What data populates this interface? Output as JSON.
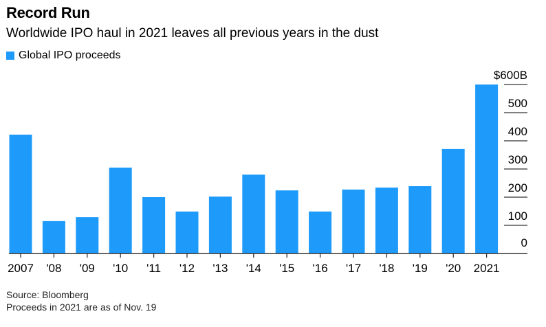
{
  "chart_data": {
    "type": "bar",
    "title": "Record Run",
    "subtitle": "Worldwide IPO haul in 2021 leaves all previous years in the dust",
    "legend": [
      {
        "name": "Global IPO proceeds",
        "color": "#1e9bfa"
      }
    ],
    "legend_placement": "top-left",
    "categories": [
      "2007",
      "'08",
      "'09",
      "'10",
      "'11",
      "'12",
      "'13",
      "'14",
      "'15",
      "'16",
      "'17",
      "'18",
      "'19",
      "'20",
      "2021"
    ],
    "series": [
      {
        "name": "Global IPO proceeds",
        "values": [
          422,
          115,
          129,
          305,
          200,
          149,
          202,
          280,
          224,
          149,
          227,
          234,
          239,
          371,
          600
        ]
      }
    ],
    "ylim": [
      0,
      600
    ],
    "yticks": [
      0,
      100,
      200,
      300,
      400,
      500,
      600
    ],
    "ytick_labels": [
      "0",
      "100",
      "200",
      "300",
      "400",
      "500",
      "$600B"
    ],
    "yaxis_side": "right",
    "xlabel": "",
    "ylabel": ""
  },
  "footer": {
    "source": "Source: Bloomberg",
    "note": "Proceeds in 2021 are as of Nov. 19"
  },
  "colors": {
    "bar": "#1e9bfa",
    "axis": "#333333"
  }
}
